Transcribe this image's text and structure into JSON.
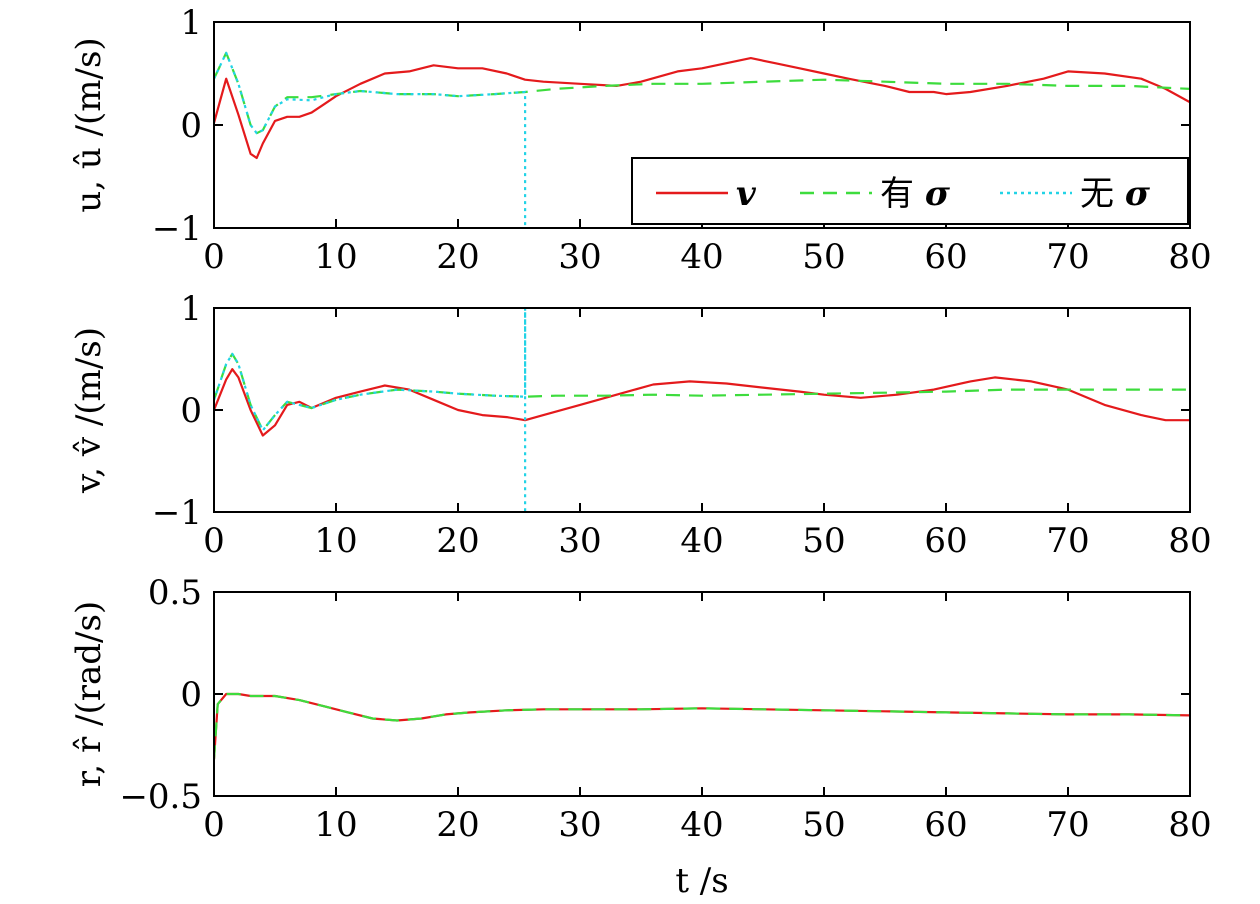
{
  "chart_data": [
    {
      "type": "line",
      "ylabel": "u, û /(m/s)",
      "xlim": [
        0,
        80
      ],
      "ylim": [
        -1,
        1
      ],
      "xticks": [
        "0",
        "10",
        "20",
        "30",
        "40",
        "50",
        "60",
        "70",
        "80"
      ],
      "yticks": [
        "1",
        "0",
        "−1"
      ],
      "legend": {
        "placement": "bottom-right",
        "entries": [
          {
            "text": "",
            "symbol": "v",
            "color": "#e41a1c",
            "style": "solid"
          },
          {
            "text": "有",
            "symbol": "σ",
            "color": "#3ddc3d",
            "style": "dashed"
          },
          {
            "text": "无",
            "symbol": "σ",
            "color": "#22d3e6",
            "style": "dotted"
          }
        ]
      },
      "series": [
        {
          "color": "#e41a1c",
          "style": "solid",
          "x": [
            0,
            1,
            2,
            3,
            3.5,
            4,
            5,
            6,
            7,
            8,
            9,
            10,
            12,
            14,
            16,
            18,
            20,
            22,
            24,
            25.5,
            27,
            30,
            33,
            35,
            38,
            40,
            42,
            44,
            46,
            48,
            50,
            52,
            55,
            57,
            59,
            60,
            62,
            65,
            68,
            70,
            73,
            76,
            78,
            80
          ],
          "y": [
            0.02,
            0.45,
            0.1,
            -0.28,
            -0.32,
            -0.18,
            0.04,
            0.08,
            0.08,
            0.12,
            0.2,
            0.28,
            0.4,
            0.5,
            0.52,
            0.58,
            0.55,
            0.55,
            0.5,
            0.44,
            0.42,
            0.4,
            0.38,
            0.42,
            0.52,
            0.55,
            0.6,
            0.65,
            0.6,
            0.55,
            0.5,
            0.45,
            0.38,
            0.32,
            0.32,
            0.3,
            0.32,
            0.38,
            0.45,
            0.52,
            0.5,
            0.45,
            0.35,
            0.22
          ]
        },
        {
          "color": "#3ddc3d",
          "style": "dashed",
          "x": [
            0,
            1,
            2,
            3,
            3.5,
            4,
            5,
            6,
            8,
            10,
            12,
            15,
            18,
            20,
            23,
            25.5,
            28,
            32,
            36,
            40,
            45,
            50,
            55,
            60,
            65,
            70,
            75,
            80
          ],
          "y": [
            0.45,
            0.7,
            0.4,
            0.0,
            -0.08,
            -0.05,
            0.18,
            0.27,
            0.27,
            0.3,
            0.33,
            0.3,
            0.3,
            0.28,
            0.3,
            0.32,
            0.35,
            0.38,
            0.4,
            0.4,
            0.42,
            0.44,
            0.42,
            0.4,
            0.4,
            0.38,
            0.38,
            0.35
          ]
        },
        {
          "color": "#22d3e6",
          "style": "dotted",
          "x": [
            0,
            1,
            2,
            3,
            3.5,
            4,
            5,
            6,
            8,
            10,
            12,
            15,
            18,
            20,
            23,
            25.5,
            25.5
          ],
          "y": [
            0.45,
            0.7,
            0.4,
            0.0,
            -0.08,
            -0.05,
            0.18,
            0.25,
            0.24,
            0.3,
            0.33,
            0.3,
            0.3,
            0.28,
            0.3,
            0.32,
            -1.0
          ]
        }
      ]
    },
    {
      "type": "line",
      "ylabel": "v, v̂ /(m/s)",
      "xlim": [
        0,
        80
      ],
      "ylim": [
        -1,
        1
      ],
      "xticks": [
        "0",
        "10",
        "20",
        "30",
        "40",
        "50",
        "60",
        "70",
        "80"
      ],
      "yticks": [
        "1",
        "0",
        "−1"
      ],
      "series": [
        {
          "color": "#e41a1c",
          "style": "solid",
          "x": [
            0,
            1,
            1.5,
            2,
            3,
            4,
            5,
            6,
            7,
            8,
            10,
            12,
            14,
            16,
            18,
            20,
            22,
            24,
            25.5,
            27,
            30,
            33,
            36,
            39,
            42,
            45,
            48,
            50,
            53,
            56,
            59,
            62,
            64,
            67,
            70,
            73,
            76,
            78,
            80
          ],
          "y": [
            0,
            0.3,
            0.4,
            0.32,
            0.0,
            -0.25,
            -0.15,
            0.05,
            0.08,
            0.02,
            0.12,
            0.18,
            0.24,
            0.2,
            0.1,
            0.0,
            -0.05,
            -0.07,
            -0.1,
            -0.05,
            0.05,
            0.15,
            0.25,
            0.28,
            0.26,
            0.22,
            0.18,
            0.15,
            0.12,
            0.15,
            0.2,
            0.28,
            0.32,
            0.28,
            0.2,
            0.05,
            -0.05,
            -0.1,
            -0.1
          ]
        },
        {
          "color": "#3ddc3d",
          "style": "dashed",
          "x": [
            0,
            1,
            1.5,
            2,
            3,
            4,
            5,
            6,
            7,
            8,
            10,
            12,
            15,
            18,
            20,
            23,
            25.5,
            28,
            32,
            36,
            40,
            45,
            50,
            55,
            60,
            65,
            70,
            75,
            80
          ],
          "y": [
            0.1,
            0.45,
            0.55,
            0.45,
            0.05,
            -0.2,
            -0.05,
            0.08,
            0.05,
            0.02,
            0.1,
            0.15,
            0.2,
            0.18,
            0.16,
            0.14,
            0.13,
            0.14,
            0.14,
            0.15,
            0.14,
            0.15,
            0.16,
            0.17,
            0.18,
            0.2,
            0.2,
            0.2,
            0.2
          ]
        },
        {
          "color": "#22d3e6",
          "style": "dotted",
          "x": [
            0,
            1,
            1.5,
            2,
            3,
            4,
            5,
            6,
            7,
            8,
            10,
            12,
            15,
            18,
            20,
            23,
            25.5,
            25.5,
            25.5
          ],
          "y": [
            0.1,
            0.45,
            0.55,
            0.45,
            0.05,
            -0.2,
            -0.05,
            0.08,
            0.05,
            0.02,
            0.1,
            0.15,
            0.2,
            0.18,
            0.16,
            0.14,
            0.13,
            1.0,
            -1.0
          ]
        }
      ]
    },
    {
      "type": "line",
      "ylabel": "r, r̂ /(rad/s)",
      "xlabel": "t /s",
      "xlim": [
        0,
        80
      ],
      "ylim": [
        -0.5,
        0.5
      ],
      "xticks": [
        "0",
        "10",
        "20",
        "30",
        "40",
        "50",
        "60",
        "70",
        "80"
      ],
      "yticks": [
        "0.5",
        "0",
        "−0.5"
      ],
      "series": [
        {
          "color": "#e41a1c",
          "style": "solid",
          "x": [
            0,
            0.3,
            1,
            2,
            3,
            5,
            7,
            9,
            11,
            13,
            15,
            17,
            19,
            21,
            24,
            27,
            30,
            35,
            40,
            45,
            50,
            55,
            60,
            65,
            70,
            75,
            80
          ],
          "y": [
            -0.32,
            -0.05,
            0.0,
            0.0,
            -0.01,
            -0.01,
            -0.03,
            -0.06,
            -0.09,
            -0.12,
            -0.13,
            -0.12,
            -0.1,
            -0.09,
            -0.08,
            -0.075,
            -0.075,
            -0.075,
            -0.07,
            -0.075,
            -0.08,
            -0.085,
            -0.09,
            -0.095,
            -0.1,
            -0.1,
            -0.105
          ]
        },
        {
          "color": "#3ddc3d",
          "style": "dashed",
          "x": [
            0,
            0.3,
            1,
            2,
            3,
            5,
            7,
            9,
            11,
            13,
            15,
            17,
            19,
            21,
            24,
            27,
            30,
            35,
            40,
            45,
            50,
            55,
            60,
            65,
            70,
            75,
            80
          ],
          "y": [
            -0.32,
            -0.05,
            0.0,
            0.0,
            -0.01,
            -0.01,
            -0.03,
            -0.06,
            -0.09,
            -0.12,
            -0.13,
            -0.12,
            -0.1,
            -0.09,
            -0.08,
            -0.075,
            -0.075,
            -0.075,
            -0.07,
            -0.075,
            -0.08,
            -0.085,
            -0.09,
            -0.095,
            -0.1,
            -0.1,
            -0.105
          ]
        }
      ]
    }
  ]
}
